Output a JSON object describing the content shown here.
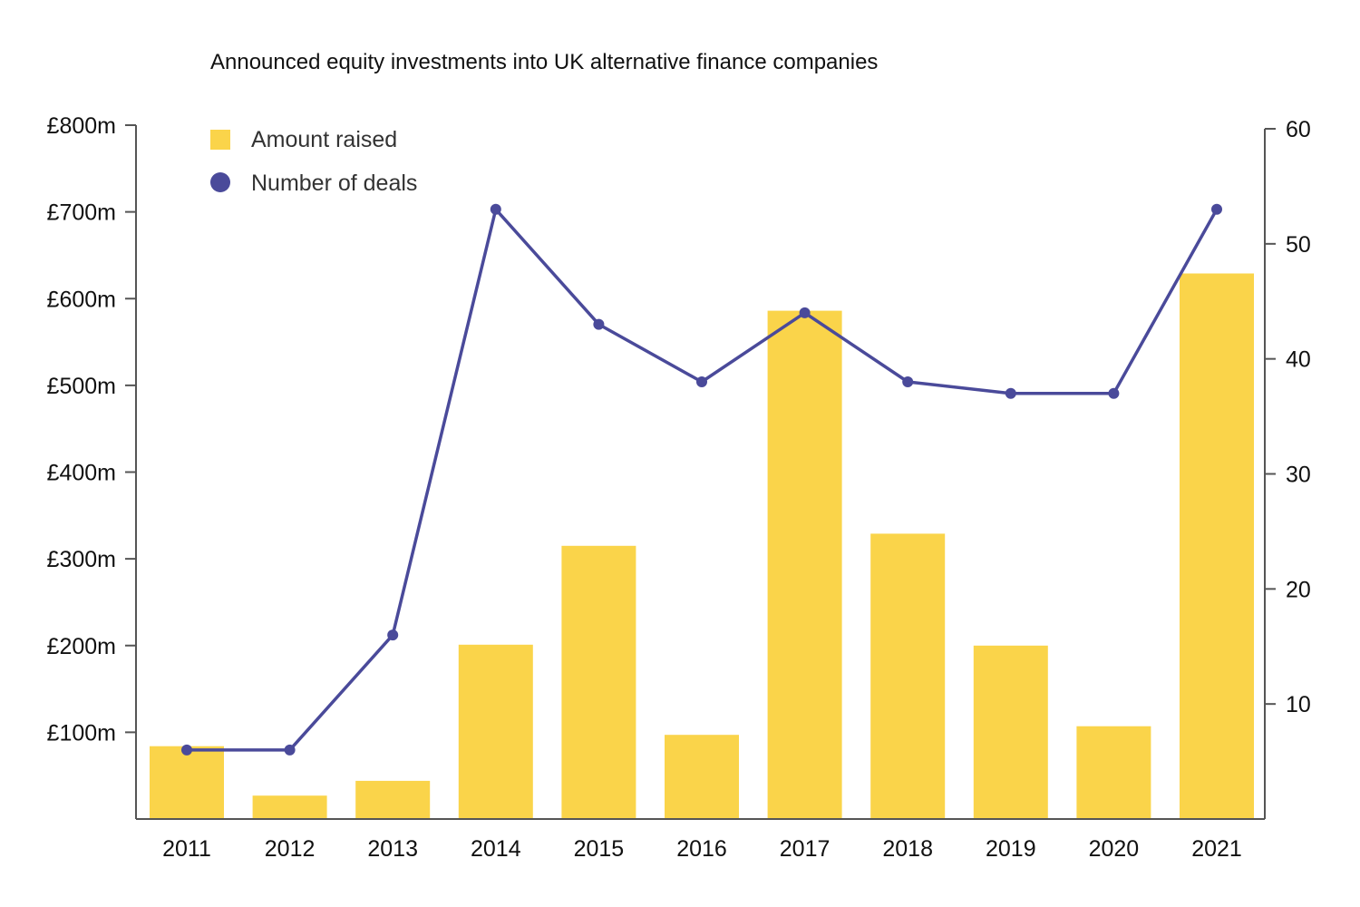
{
  "chart_data": {
    "type": "bar",
    "title": "Announced equity investments into UK alternative finance companies",
    "categories": [
      "2011",
      "2012",
      "2013",
      "2014",
      "2015",
      "2016",
      "2017",
      "2018",
      "2019",
      "2020",
      "2021"
    ],
    "series": [
      {
        "name": "Amount raised",
        "type": "bar",
        "axis": "left",
        "values": [
          84,
          27,
          44,
          201,
          315,
          97,
          586,
          329,
          200,
          107,
          629
        ]
      },
      {
        "name": "Number of deals",
        "type": "line",
        "axis": "right",
        "values": [
          6,
          6,
          16,
          53,
          43,
          38,
          44,
          38,
          37,
          37,
          53
        ]
      }
    ],
    "y_left": {
      "ylim": [
        0,
        800
      ],
      "ticks": [
        100,
        200,
        300,
        400,
        500,
        600,
        700,
        800
      ],
      "tick_labels": [
        "£100m",
        "£200m",
        "£300m",
        "£400m",
        "£500m",
        "£600m",
        "£700m",
        "£800m"
      ]
    },
    "y_right": {
      "ylim": [
        0,
        60
      ],
      "ticks": [
        10,
        20,
        30,
        40,
        50,
        60
      ],
      "tick_labels": [
        "10",
        "20",
        "30",
        "40",
        "50",
        "60"
      ]
    },
    "legend_position": "top-left",
    "grid": false
  },
  "colors": {
    "bar": "#FAD44A",
    "line": "#4A4A9A",
    "axis": "#555555",
    "text": "#111111"
  }
}
